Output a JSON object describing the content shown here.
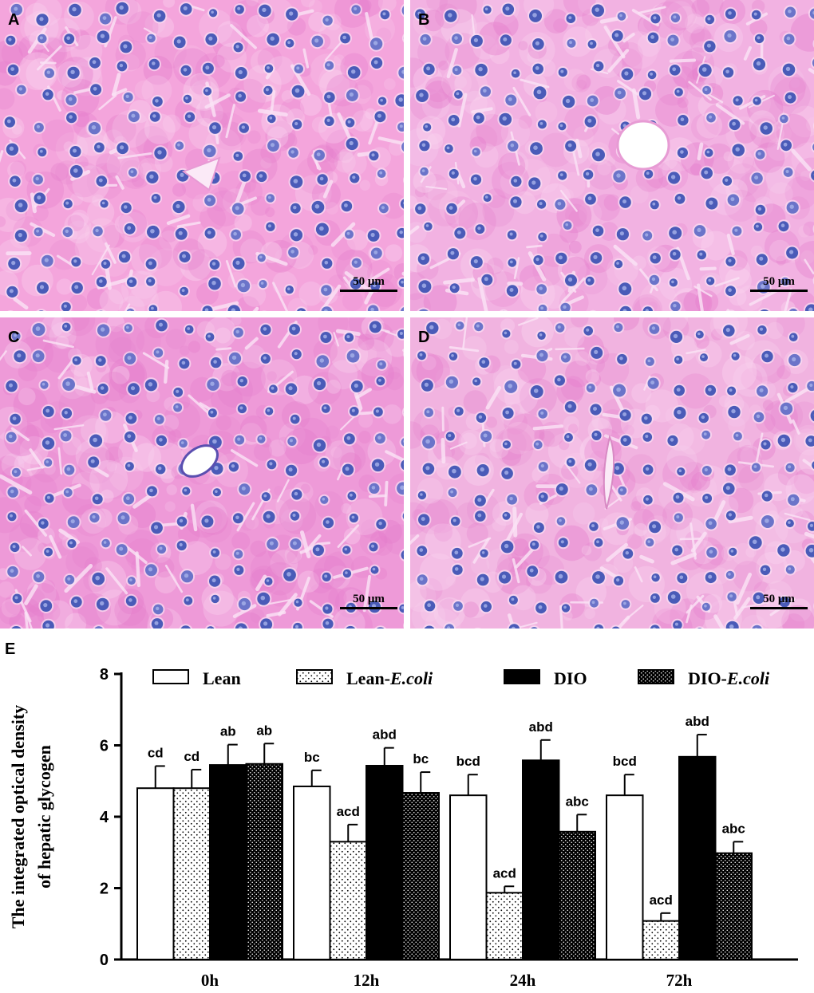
{
  "panels": [
    {
      "label": "A",
      "scale": "50 μm",
      "tone": "#f4a5dc",
      "vessel": "triangle"
    },
    {
      "label": "B",
      "scale": "50 μm",
      "tone": "#f2b2e2",
      "vessel": "oval"
    },
    {
      "label": "C",
      "scale": "50 μm",
      "tone": "#ee9ad8",
      "vessel": "oval"
    },
    {
      "label": "D",
      "scale": "50 μm",
      "tone": "#f1b3e0",
      "vessel": "slit"
    }
  ],
  "chart_label": "E",
  "chart_data": {
    "type": "bar",
    "title": "",
    "xlabel": "",
    "ylabel_lines": [
      "The integrated optical density",
      "of  hepatic glycogen"
    ],
    "ylim": [
      0,
      8
    ],
    "yticks": [
      0,
      2,
      4,
      6,
      8
    ],
    "categories": [
      "0h",
      "12h",
      "24h",
      "72h"
    ],
    "legend_position": "top",
    "series": [
      {
        "name": "Lean",
        "pattern": "white",
        "values": [
          4.8,
          4.85,
          4.6,
          4.6
        ],
        "errors": [
          0.62,
          0.45,
          0.58,
          0.58
        ],
        "labels": [
          "cd",
          "bc",
          "bcd",
          "bcd"
        ]
      },
      {
        "name": "Lean-E.coli",
        "name_parts": [
          "Lean-",
          "E.coli"
        ],
        "pattern": "sparse-dots",
        "values": [
          4.8,
          3.3,
          1.87,
          1.08
        ],
        "errors": [
          0.52,
          0.48,
          0.18,
          0.22
        ],
        "labels": [
          "cd",
          "acd",
          "acd",
          "acd"
        ]
      },
      {
        "name": "DIO",
        "pattern": "black",
        "values": [
          5.45,
          5.43,
          5.58,
          5.68
        ],
        "errors": [
          0.57,
          0.5,
          0.57,
          0.62
        ],
        "labels": [
          "ab",
          "abd",
          "abd",
          "abd"
        ]
      },
      {
        "name": "DIO-E.coli",
        "name_parts": [
          "DIO-",
          "E.coli"
        ],
        "pattern": "dense-dots",
        "values": [
          5.48,
          4.67,
          3.58,
          2.98
        ],
        "errors": [
          0.57,
          0.58,
          0.48,
          0.32
        ],
        "labels": [
          "ab",
          "bc",
          "abc",
          "abc"
        ]
      }
    ]
  }
}
